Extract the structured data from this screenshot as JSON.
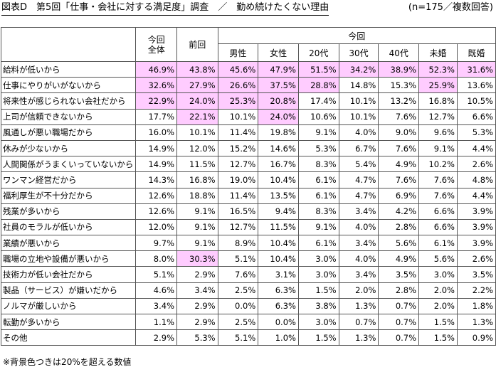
{
  "title": "図表D　第5回「仕事・会社に対する満足度」調査　／　勤め続けたくない理由",
  "sample_note": "(n=175／複数回答)",
  "columns": {
    "total": "今回\n全体",
    "previous": "前回",
    "group": "今回",
    "sub": [
      "男性",
      "女性",
      "20代",
      "30代",
      "40代",
      "未婚",
      "既婚"
    ]
  },
  "rows": [
    {
      "label": "給料が低いから",
      "values": [
        "46.9%",
        "43.8%",
        "45.6%",
        "47.9%",
        "51.5%",
        "34.2%",
        "38.9%",
        "52.3%",
        "31.6%"
      ],
      "hl": [
        1,
        1,
        1,
        1,
        1,
        1,
        1,
        1,
        1
      ]
    },
    {
      "label": "仕事にやりがいがないから",
      "values": [
        "32.6%",
        "27.9%",
        "26.6%",
        "37.5%",
        "28.8%",
        "14.8%",
        "15.3%",
        "25.9%",
        "13.6%"
      ],
      "hl": [
        1,
        1,
        1,
        1,
        1,
        0,
        0,
        1,
        0
      ]
    },
    {
      "label": "将来性が感じられない会社だから",
      "values": [
        "22.9%",
        "24.0%",
        "25.3%",
        "20.8%",
        "17.4%",
        "10.1%",
        "13.2%",
        "16.8%",
        "10.5%"
      ],
      "hl": [
        1,
        1,
        1,
        1,
        0,
        0,
        0,
        0,
        0
      ]
    },
    {
      "label": "上司が信頼できないから",
      "values": [
        "17.7%",
        "22.1%",
        "10.1%",
        "24.0%",
        "10.6%",
        "10.1%",
        "7.6%",
        "12.7%",
        "6.6%"
      ],
      "hl": [
        0,
        1,
        0,
        1,
        0,
        0,
        0,
        0,
        0
      ]
    },
    {
      "label": "風通しが悪い職場だから",
      "values": [
        "16.0%",
        "10.1%",
        "11.4%",
        "19.8%",
        "9.1%",
        "4.0%",
        "9.0%",
        "9.6%",
        "5.3%"
      ],
      "hl": [
        0,
        0,
        0,
        0,
        0,
        0,
        0,
        0,
        0
      ]
    },
    {
      "label": "休みが少ないから",
      "values": [
        "14.9%",
        "12.0%",
        "15.2%",
        "14.6%",
        "5.3%",
        "6.7%",
        "7.6%",
        "9.1%",
        "4.4%"
      ],
      "hl": [
        0,
        0,
        0,
        0,
        0,
        0,
        0,
        0,
        0
      ]
    },
    {
      "label": "人間関係がうまくいっていないから",
      "values": [
        "14.9%",
        "11.5%",
        "12.7%",
        "16.7%",
        "8.3%",
        "5.4%",
        "4.9%",
        "10.2%",
        "2.6%"
      ],
      "hl": [
        0,
        0,
        0,
        0,
        0,
        0,
        0,
        0,
        0
      ]
    },
    {
      "label": "ワンマン経営だから",
      "values": [
        "14.3%",
        "16.8%",
        "19.0%",
        "10.4%",
        "6.1%",
        "4.7%",
        "7.6%",
        "7.6%",
        "4.8%"
      ],
      "hl": [
        0,
        0,
        0,
        0,
        0,
        0,
        0,
        0,
        0
      ]
    },
    {
      "label": "福利厚生が不十分だから",
      "values": [
        "12.6%",
        "18.8%",
        "11.4%",
        "13.5%",
        "6.1%",
        "4.7%",
        "6.9%",
        "7.6%",
        "4.4%"
      ],
      "hl": [
        0,
        0,
        0,
        0,
        0,
        0,
        0,
        0,
        0
      ]
    },
    {
      "label": "残業が多いから",
      "values": [
        "12.6%",
        "9.1%",
        "16.5%",
        "9.4%",
        "8.3%",
        "3.4%",
        "4.2%",
        "6.6%",
        "3.9%"
      ],
      "hl": [
        0,
        0,
        0,
        0,
        0,
        0,
        0,
        0,
        0
      ]
    },
    {
      "label": "社員のモラルが低いから",
      "values": [
        "12.0%",
        "9.1%",
        "12.7%",
        "11.5%",
        "9.1%",
        "4.0%",
        "2.8%",
        "6.6%",
        "3.9%"
      ],
      "hl": [
        0,
        0,
        0,
        0,
        0,
        0,
        0,
        0,
        0
      ]
    },
    {
      "label": "業績が悪いから",
      "values": [
        "9.7%",
        "9.1%",
        "8.9%",
        "10.4%",
        "6.1%",
        "3.4%",
        "5.6%",
        "6.1%",
        "3.9%"
      ],
      "hl": [
        0,
        0,
        0,
        0,
        0,
        0,
        0,
        0,
        0
      ]
    },
    {
      "label": "職場の立地や設備が悪いから",
      "values": [
        "8.0%",
        "30.3%",
        "5.1%",
        "10.4%",
        "3.0%",
        "4.0%",
        "4.9%",
        "5.6%",
        "2.6%"
      ],
      "hl": [
        0,
        1,
        0,
        0,
        0,
        0,
        0,
        0,
        0
      ]
    },
    {
      "label": "技術力が低い会社だから",
      "values": [
        "5.1%",
        "2.9%",
        "7.6%",
        "3.1%",
        "3.0%",
        "3.4%",
        "3.5%",
        "3.0%",
        "3.5%"
      ],
      "hl": [
        0,
        0,
        0,
        0,
        0,
        0,
        0,
        0,
        0
      ]
    },
    {
      "label": "製品（サービス）が嫌いだから",
      "values": [
        "4.6%",
        "3.4%",
        "2.5%",
        "6.3%",
        "1.5%",
        "2.0%",
        "2.8%",
        "2.0%",
        "2.2%"
      ],
      "hl": [
        0,
        0,
        0,
        0,
        0,
        0,
        0,
        0,
        0
      ]
    },
    {
      "label": "ノルマが厳しいから",
      "values": [
        "3.4%",
        "2.9%",
        "0.0%",
        "6.3%",
        "3.8%",
        "1.3%",
        "0.7%",
        "2.0%",
        "1.8%"
      ],
      "hl": [
        0,
        0,
        0,
        0,
        0,
        0,
        0,
        0,
        0
      ]
    },
    {
      "label": "転勤が多いから",
      "values": [
        "1.1%",
        "2.9%",
        "2.5%",
        "0.0%",
        "3.0%",
        "0.7%",
        "0.7%",
        "1.5%",
        "1.3%"
      ],
      "hl": [
        0,
        0,
        0,
        0,
        0,
        0,
        0,
        0,
        0
      ]
    },
    {
      "label": "その他",
      "values": [
        "2.9%",
        "5.3%",
        "5.1%",
        "1.0%",
        "1.5%",
        "1.3%",
        "0.7%",
        "1.5%",
        "0.9%"
      ],
      "hl": [
        0,
        0,
        0,
        0,
        0,
        0,
        0,
        0,
        0
      ]
    }
  ],
  "footnote": "※背景色つきは20%を超える数値"
}
